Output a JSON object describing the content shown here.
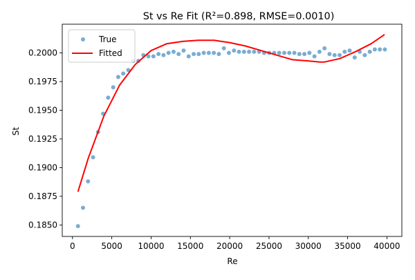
{
  "chart_data": {
    "type": "scatter",
    "title": "St vs Re Fit (R²=0.898, RMSE=0.0010)",
    "xlabel": "Re",
    "ylabel": "St",
    "xlim": [
      -1300,
      41900
    ],
    "ylim": [
      0.184,
      0.2025
    ],
    "x_ticks": [
      0,
      5000,
      10000,
      15000,
      20000,
      25000,
      30000,
      35000,
      40000
    ],
    "y_ticks": [
      0.185,
      0.1875,
      0.19,
      0.1925,
      0.195,
      0.1975,
      0.2
    ],
    "grid": false,
    "legend_position": "top-left",
    "series": [
      {
        "name": "True",
        "kind": "scatter",
        "color": "#1f77b4",
        "opacity": 0.6,
        "x": [
          700,
          1340,
          1980,
          2620,
          3260,
          3900,
          4540,
          5180,
          5820,
          6460,
          7100,
          7740,
          8380,
          9020,
          9660,
          10300,
          10940,
          11580,
          12220,
          12860,
          13500,
          14140,
          14780,
          15420,
          16060,
          16700,
          17340,
          17980,
          18620,
          19260,
          19900,
          20540,
          21180,
          21820,
          22460,
          23100,
          23740,
          24380,
          25020,
          25660,
          26300,
          26940,
          27580,
          28220,
          28860,
          29500,
          30140,
          30780,
          31420,
          32060,
          32700,
          33340,
          33980,
          34620,
          35260,
          35900,
          36540,
          37180,
          37820,
          38460,
          39100,
          39740
        ],
        "y": [
          0.1849,
          0.1865,
          0.1888,
          0.1909,
          0.1931,
          0.1947,
          0.1961,
          0.197,
          0.1979,
          0.1982,
          0.1985,
          0.1993,
          0.1993,
          0.1998,
          0.1997,
          0.1997,
          0.1999,
          0.1998,
          0.2,
          0.2001,
          0.1999,
          0.2002,
          0.1997,
          0.1999,
          0.1999,
          0.2,
          0.2,
          0.2,
          0.1999,
          0.2004,
          0.2,
          0.2002,
          0.2001,
          0.2001,
          0.2001,
          0.2001,
          0.2001,
          0.2,
          0.2,
          0.2,
          0.2,
          0.2,
          0.2,
          0.2,
          0.1999,
          0.1999,
          0.2,
          0.1997,
          0.2001,
          0.2004,
          0.1999,
          0.1998,
          0.1998,
          0.2001,
          0.2002,
          0.1996,
          0.2001,
          0.1998,
          0.2001,
          0.2003,
          0.2003,
          0.2003
        ]
      },
      {
        "name": "Fitted",
        "kind": "line",
        "color": "#ff0000",
        "x": [
          700,
          2000,
          4000,
          6000,
          8000,
          10000,
          12000,
          14000,
          16000,
          17000,
          18000,
          20000,
          22000,
          24000,
          26000,
          28000,
          30000,
          31500,
          32000,
          34000,
          36000,
          38000,
          39700
        ],
        "y": [
          0.1879,
          0.1908,
          0.1945,
          0.1972,
          0.199,
          0.2002,
          0.2008,
          0.201,
          0.2011,
          0.2011,
          0.2011,
          0.2009,
          0.2006,
          0.2002,
          0.1998,
          0.1994,
          0.1993,
          0.1992,
          0.1992,
          0.1995,
          0.2001,
          0.2008,
          0.2016
        ]
      }
    ]
  }
}
